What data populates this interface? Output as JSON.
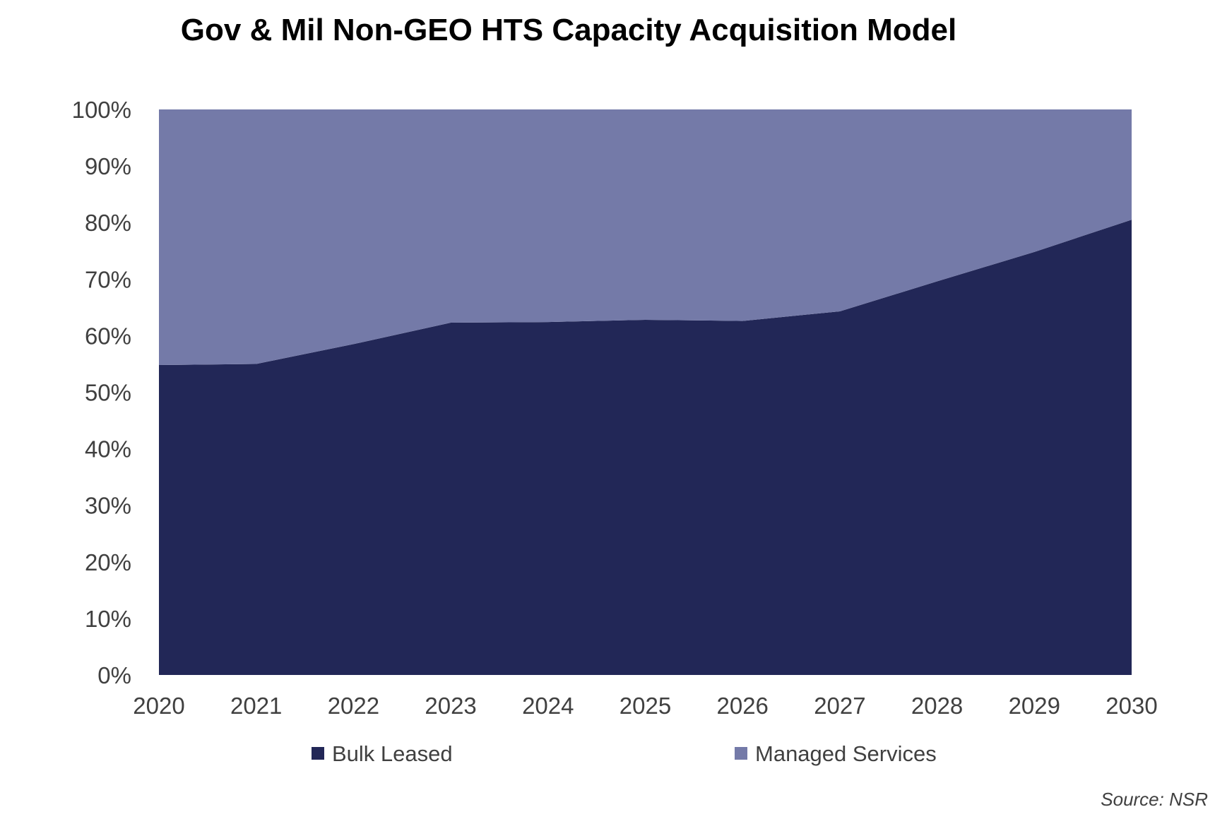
{
  "chart_data": {
    "type": "area",
    "stacked": true,
    "percent": true,
    "title": "Gov & Mil Non-GEO HTS Capacity Acquisition Model",
    "x": [
      "2020",
      "2021",
      "2022",
      "2023",
      "2024",
      "2025",
      "2026",
      "2027",
      "2028",
      "2029",
      "2030"
    ],
    "yticks": [
      "0%",
      "10%",
      "20%",
      "30%",
      "40%",
      "50%",
      "60%",
      "70%",
      "80%",
      "90%",
      "100%"
    ],
    "ylim": [
      0,
      100
    ],
    "series": [
      {
        "name": "Bulk Leased",
        "color": "#222757",
        "values": [
          54.8,
          55.0,
          58.5,
          62.3,
          62.4,
          62.8,
          62.6,
          64.3,
          69.6,
          74.8,
          80.5
        ]
      },
      {
        "name": "Managed Services",
        "color": "#747aa8",
        "values": [
          45.2,
          45.0,
          41.5,
          37.7,
          37.6,
          37.2,
          37.4,
          35.7,
          30.4,
          25.2,
          19.5
        ]
      }
    ],
    "legend_position": "bottom",
    "grid": false,
    "source": "Source:  NSR"
  }
}
